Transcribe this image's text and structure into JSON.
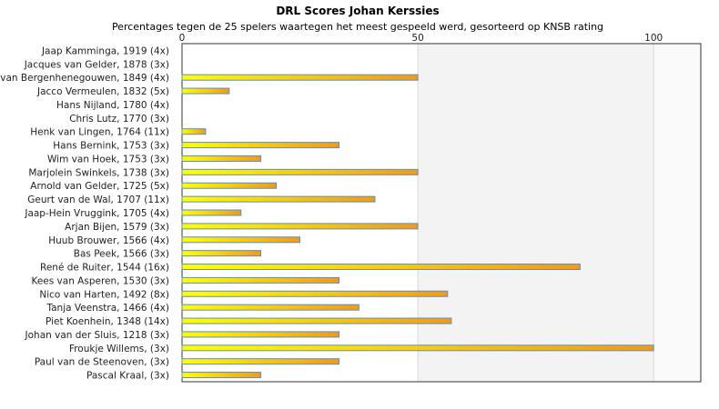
{
  "chart_data": {
    "type": "bar",
    "orientation": "horizontal",
    "title": "DRL Scores Johan Kerssies",
    "subtitle": "Percentages tegen de 25 spelers waartegen het meest gespeeld werd, gesorteerd op KNSB rating",
    "xlim": [
      0,
      110
    ],
    "xticks": [
      0,
      50,
      100
    ],
    "grid": true,
    "categories": [
      "Jaap Kamminga, 1919 (4x)",
      "Jacques van Gelder, 1878 (3x)",
      "van Bergenhenegouwen, 1849 (4x)",
      "Jacco Vermeulen, 1832 (5x)",
      "Hans Nijland, 1780 (4x)",
      "Chris Lutz, 1770 (3x)",
      "Henk van Lingen, 1764 (11x)",
      "Hans Bernink, 1753 (3x)",
      "Wim van Hoek, 1753 (3x)",
      "Marjolein Swinkels, 1738 (3x)",
      "Arnold van Gelder, 1725 (5x)",
      "Geurt van de Wal, 1707 (11x)",
      "Jaap-Hein Vruggink, 1705 (4x)",
      "Arjan Bijen, 1579 (3x)",
      "Huub Brouwer, 1566 (4x)",
      "Bas Peek, 1566 (3x)",
      "René de Ruiter, 1544 (16x)",
      "Kees van Asperen, 1530 (3x)",
      "Nico van Harten, 1492 (8x)",
      "Tanja Veenstra, 1466 (4x)",
      "Piet Koenhein, 1348 (14x)",
      "Johan van der Sluis, 1218 (3x)",
      "Froukje Willems,  (3x)",
      "Paul van de Steenoven,  (3x)",
      "Pascal Kraal,  (3x)"
    ],
    "values": [
      0,
      0,
      50,
      10,
      0,
      0,
      5,
      33.3,
      16.7,
      50,
      20,
      40.9,
      12.5,
      50,
      25,
      16.7,
      84.4,
      33.3,
      56.3,
      37.5,
      57.1,
      33.3,
      100,
      33.3,
      16.7
    ],
    "colors": {
      "bar_light": "#ffff00",
      "bar_dark": "#f29a18",
      "bar_edge": "#5b8fc6",
      "band_light": "#f3f3f3",
      "band_lighter": "#fafafa",
      "frame": "#333333"
    }
  }
}
